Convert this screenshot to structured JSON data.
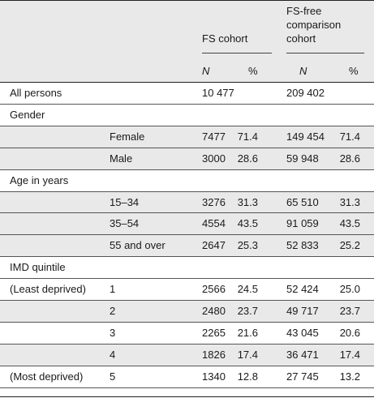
{
  "header": {
    "fs_group": "FS cohort",
    "comp_group": "FS-free\ncomparison\ncohort",
    "n_label": "N",
    "pct_label": "%"
  },
  "rows": [
    {
      "label": "All persons",
      "sub": "",
      "fs_n": "10 477",
      "fs_pct": "",
      "comp_n": "209 402",
      "comp_pct": "",
      "shade": false
    },
    {
      "label": "Gender",
      "sub": "",
      "fs_n": "",
      "fs_pct": "",
      "comp_n": "",
      "comp_pct": "",
      "shade": false
    },
    {
      "label": "",
      "sub": "Female",
      "fs_n": "7477",
      "fs_pct": "71.4",
      "comp_n": "149 454",
      "comp_pct": "71.4",
      "shade": true
    },
    {
      "label": "",
      "sub": "Male",
      "fs_n": "3000",
      "fs_pct": "28.6",
      "comp_n": "59 948",
      "comp_pct": "28.6",
      "shade": true
    },
    {
      "label": "Age in years",
      "sub": "",
      "fs_n": "",
      "fs_pct": "",
      "comp_n": "",
      "comp_pct": "",
      "shade": false
    },
    {
      "label": "",
      "sub": "15–34",
      "fs_n": "3276",
      "fs_pct": "31.3",
      "comp_n": "65 510",
      "comp_pct": "31.3",
      "shade": true
    },
    {
      "label": "",
      "sub": "35–54",
      "fs_n": "4554",
      "fs_pct": "43.5",
      "comp_n": "91 059",
      "comp_pct": "43.5",
      "shade": true
    },
    {
      "label": "",
      "sub": "55 and over",
      "fs_n": "2647",
      "fs_pct": "25.3",
      "comp_n": "52 833",
      "comp_pct": "25.2",
      "shade": true
    },
    {
      "label": "IMD quintile",
      "sub": "",
      "fs_n": "",
      "fs_pct": "",
      "comp_n": "",
      "comp_pct": "",
      "shade": false
    },
    {
      "label": "(Least deprived)",
      "sub": "1",
      "fs_n": "2566",
      "fs_pct": "24.5",
      "comp_n": "52 424",
      "comp_pct": "25.0",
      "shade": false
    },
    {
      "label": "",
      "sub": "2",
      "fs_n": "2480",
      "fs_pct": "23.7",
      "comp_n": "49 717",
      "comp_pct": "23.7",
      "shade": true
    },
    {
      "label": "",
      "sub": "3",
      "fs_n": "2265",
      "fs_pct": "21.6",
      "comp_n": "43 045",
      "comp_pct": "20.6",
      "shade": false
    },
    {
      "label": "",
      "sub": "4",
      "fs_n": "1826",
      "fs_pct": "17.4",
      "comp_n": "36 471",
      "comp_pct": "17.4",
      "shade": true
    },
    {
      "label": "(Most deprived)",
      "sub": "5",
      "fs_n": "1340",
      "fs_pct": "12.8",
      "comp_n": "27 745",
      "comp_pct": "13.2",
      "shade": false
    }
  ]
}
